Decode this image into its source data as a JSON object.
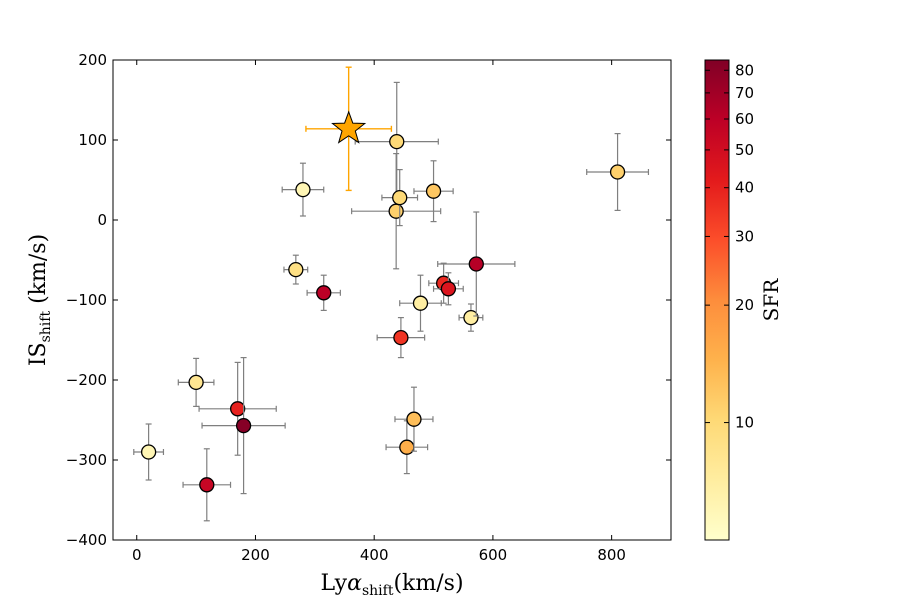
{
  "chart_data": {
    "type": "scatter",
    "xlabel": "Lyα_shift(km/s)",
    "ylabel": "IS_shift (km/s)",
    "colorbar_label": "SFR",
    "xlim": [
      -40,
      900
    ],
    "ylim": [
      -400,
      200
    ],
    "xticks": [
      0,
      200,
      400,
      600,
      800
    ],
    "yticks": [
      -400,
      -300,
      -200,
      -100,
      0,
      100,
      200
    ],
    "colorbar": {
      "min": 5,
      "max": 85,
      "scale": "log",
      "ticks": [
        10,
        20,
        30,
        40,
        50,
        60,
        70,
        80
      ],
      "colors": [
        "#ffffcc",
        "#ffeda0",
        "#fed976",
        "#feb24c",
        "#fd8d3c",
        "#fc4e2a",
        "#e31a1c",
        "#bd0026",
        "#800026"
      ]
    },
    "errorbar_color": "#7f7f7f",
    "points": [
      {
        "x": 20,
        "y": -290,
        "xerr": 25,
        "yerr": 35,
        "sfr": 6
      },
      {
        "x": 100,
        "y": -203,
        "xerr": 30,
        "yerr": 30,
        "sfr": 8
      },
      {
        "x": 118,
        "y": -331,
        "xerr": 40,
        "yerr": 45,
        "sfr": 55
      },
      {
        "x": 170,
        "y": -236,
        "xerr": 65,
        "yerr": 58,
        "sfr": 40
      },
      {
        "x": 180,
        "y": -257,
        "xerr": 70,
        "yerr": 85,
        "sfr": 82
      },
      {
        "x": 268,
        "y": -62,
        "xerr": 20,
        "yerr": 18,
        "sfr": 9
      },
      {
        "x": 280,
        "y": 38,
        "xerr": 35,
        "yerr": 33,
        "sfr": 6
      },
      {
        "x": 315,
        "y": -91,
        "xerr": 28,
        "yerr": 22,
        "sfr": 60
      },
      {
        "x": 437,
        "y": 11,
        "xerr": 75,
        "yerr": 72,
        "sfr": 11
      },
      {
        "x": 438,
        "y": 98,
        "xerr": 70,
        "yerr": 74,
        "sfr": 10
      },
      {
        "x": 443,
        "y": 28,
        "xerr": 30,
        "yerr": 35,
        "sfr": 10
      },
      {
        "x": 445,
        "y": -147,
        "xerr": 40,
        "yerr": 25,
        "sfr": 35
      },
      {
        "x": 455,
        "y": -284,
        "xerr": 35,
        "yerr": 33,
        "sfr": 15
      },
      {
        "x": 467,
        "y": -249,
        "xerr": 32,
        "yerr": 40,
        "sfr": 13
      },
      {
        "x": 478,
        "y": -104,
        "xerr": 35,
        "yerr": 35,
        "sfr": 7
      },
      {
        "x": 500,
        "y": 36,
        "xerr": 33,
        "yerr": 38,
        "sfr": 12
      },
      {
        "x": 517,
        "y": -79,
        "xerr": 25,
        "yerr": 25,
        "sfr": 38
      },
      {
        "x": 525,
        "y": -86,
        "xerr": 25,
        "yerr": 20,
        "sfr": 45
      },
      {
        "x": 563,
        "y": -122,
        "xerr": 20,
        "yerr": 17,
        "sfr": 7
      },
      {
        "x": 572,
        "y": -55,
        "xerr": 65,
        "yerr": 65,
        "sfr": 62
      },
      {
        "x": 810,
        "y": 60,
        "xerr": 52,
        "yerr": 48,
        "sfr": 11
      }
    ],
    "highlight": {
      "x": 357,
      "y": 114,
      "xerr": 72,
      "yerr": 77,
      "color": "#ffa500",
      "marker": "star"
    }
  }
}
